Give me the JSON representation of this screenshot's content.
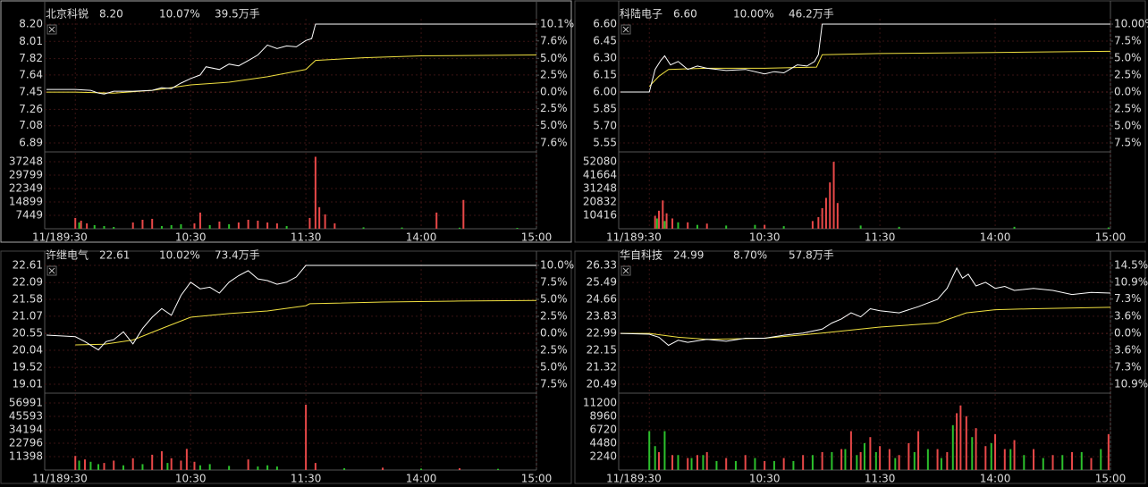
{
  "chart_data": [
    {
      "type": "intraday",
      "name": "北京科锐",
      "price": "8.20",
      "change": "10.07%",
      "volume": "39.5万手",
      "date": "11/18",
      "xlim": [
        -15,
        240
      ],
      "xticks": [
        {
          "value": 0,
          "label": "9:30"
        },
        {
          "value": 60,
          "label": "10:30"
        },
        {
          "value": 120,
          "label": "11:30"
        },
        {
          "value": 180,
          "label": "14:00"
        },
        {
          "value": 240,
          "label": "15:00"
        }
      ],
      "ylim": [
        6.89,
        8.2
      ],
      "yticks": [
        {
          "value": 8.2,
          "label": "8.20"
        },
        8.01,
        7.82,
        7.64,
        7.45,
        7.26,
        7.08,
        6.89
      ],
      "y2lim": [
        -7.6,
        10.1
      ],
      "y2ticks": [
        {
          "value": 10.1,
          "label": "10.1%"
        },
        {
          "value": 7.6,
          "label": "7.6%"
        },
        {
          "value": 5.0,
          "label": "5.0%"
        },
        {
          "value": 2.5,
          "label": "2.5%"
        },
        {
          "value": 0,
          "label": "0.0%"
        },
        {
          "value": -2.5,
          "label": "2.5%"
        },
        {
          "value": -5.0,
          "label": "5.0%"
        },
        {
          "value": -7.6,
          "label": "7.6%"
        }
      ],
      "price_line": {
        "color": "#ffffff",
        "x": [
          -15,
          0,
          8,
          12,
          15,
          20,
          30,
          40,
          45,
          50,
          55,
          60,
          65,
          68,
          75,
          80,
          85,
          91,
          95,
          100,
          105,
          110,
          115,
          120,
          123,
          125,
          240
        ],
        "values": [
          7.48,
          7.48,
          7.47,
          7.44,
          7.43,
          7.46,
          7.46,
          7.47,
          7.5,
          7.49,
          7.55,
          7.6,
          7.64,
          7.73,
          7.7,
          7.76,
          7.74,
          7.81,
          7.86,
          7.97,
          7.93,
          7.96,
          7.95,
          8.02,
          8.04,
          8.2,
          8.2
        ]
      },
      "avg_line": {
        "color": "#f0e040",
        "x": [
          -15,
          0,
          20,
          40,
          60,
          80,
          100,
          115,
          120,
          125,
          150,
          180,
          240
        ],
        "values": [
          7.45,
          7.45,
          7.44,
          7.47,
          7.53,
          7.56,
          7.62,
          7.68,
          7.7,
          7.8,
          7.83,
          7.85,
          7.86
        ]
      },
      "volume_ylim": [
        0,
        42200
      ],
      "volume_yticks": [
        37248,
        29799,
        22349,
        14899,
        7449
      ],
      "volume_series": [
        {
          "color": "#e84848",
          "x": [
            0,
            3,
            6,
            30,
            35,
            40,
            62,
            65,
            75,
            85,
            90,
            95,
            100,
            105,
            122,
            125,
            127,
            130,
            135,
            188,
            202
          ],
          "values": [
            6000,
            4500,
            3000,
            3500,
            5000,
            5500,
            3000,
            9000,
            4000,
            3500,
            5000,
            4500,
            3500,
            3000,
            6000,
            40000,
            12000,
            8000,
            3000,
            9000,
            16000
          ]
        },
        {
          "color": "#2cc02c",
          "x": [
            2,
            10,
            15,
            20,
            45,
            50,
            55,
            70,
            80,
            110,
            150,
            170,
            200,
            230
          ],
          "values": [
            3500,
            2000,
            1500,
            1000,
            1500,
            2000,
            2500,
            2000,
            2500,
            1500,
            800,
            700,
            600,
            500
          ]
        }
      ]
    },
    {
      "type": "intraday",
      "name": "科陆电子",
      "price": "6.60",
      "change": "10.00%",
      "volume": "46.2万手",
      "date": "11/18",
      "xlim": [
        -15,
        240
      ],
      "xticks": [
        {
          "value": 0,
          "label": "9:30"
        },
        {
          "value": 60,
          "label": "10:30"
        },
        {
          "value": 120,
          "label": "11:30"
        },
        {
          "value": 180,
          "label": "14:00"
        },
        {
          "value": 240,
          "label": "15:00"
        }
      ],
      "ylim": [
        5.55,
        6.6
      ],
      "yticks": [
        {
          "value": 6.6,
          "label": "6.60"
        },
        6.45,
        {
          "value": 6.3,
          "label": "6.30"
        },
        6.15,
        {
          "value": 6.0,
          "label": "6.00"
        },
        5.85,
        {
          "value": 5.7,
          "label": "5.70"
        },
        5.55
      ],
      "y2lim": [
        -7.5,
        10.0
      ],
      "y2ticks": [
        {
          "value": 10.0,
          "label": "10.00%"
        },
        {
          "value": 7.5,
          "label": "7.5%"
        },
        {
          "value": 5.0,
          "label": "5.0%"
        },
        {
          "value": 2.5,
          "label": "2.5%"
        },
        {
          "value": 0,
          "label": "0.0%"
        },
        {
          "value": -2.5,
          "label": "2.5%"
        },
        {
          "value": -5.0,
          "label": "5.0%"
        },
        {
          "value": -7.5,
          "label": "7.5%"
        }
      ],
      "price_line": {
        "color": "#ffffff",
        "x": [
          -15,
          0,
          3,
          6,
          8,
          11,
          15,
          20,
          25,
          30,
          40,
          50,
          60,
          65,
          70,
          77,
          82,
          86,
          88,
          90,
          240
        ],
        "values": [
          6.0,
          6.0,
          6.2,
          6.28,
          6.32,
          6.24,
          6.27,
          6.2,
          6.23,
          6.21,
          6.19,
          6.2,
          6.16,
          6.18,
          6.17,
          6.24,
          6.23,
          6.27,
          6.33,
          6.6,
          6.6
        ]
      },
      "avg_line": {
        "color": "#f0e040",
        "x": [
          0,
          5,
          10,
          30,
          60,
          87,
          90,
          120,
          180,
          240
        ],
        "values": [
          6.05,
          6.14,
          6.2,
          6.21,
          6.21,
          6.22,
          6.33,
          6.34,
          6.35,
          6.36
        ]
      },
      "volume_ylim": [
        0,
        59000
      ],
      "volume_yticks": [
        52080,
        41664,
        31248,
        20832,
        10416
      ],
      "volume_series": [
        {
          "color": "#e84848",
          "x": [
            3,
            5,
            7,
            9,
            12,
            20,
            30,
            60,
            85,
            88,
            90,
            92,
            94,
            96,
            98
          ],
          "values": [
            10000,
            14000,
            22000,
            12000,
            8000,
            5000,
            4000,
            3000,
            6000,
            9000,
            16000,
            24000,
            36000,
            52000,
            20000
          ]
        },
        {
          "color": "#2cc02c",
          "x": [
            4,
            8,
            15,
            25,
            40,
            55,
            70,
            110,
            130,
            190,
            239
          ],
          "values": [
            8000,
            6000,
            5000,
            3000,
            2500,
            3000,
            2000,
            2500,
            1500,
            1500,
            1000
          ]
        }
      ]
    },
    {
      "type": "intraday",
      "name": "许继电气",
      "price": "22.61",
      "change": "10.02%",
      "volume": "73.4万手",
      "date": "11/18",
      "xlim": [
        -15,
        240
      ],
      "xticks": [
        {
          "value": 0,
          "label": "9:30"
        },
        {
          "value": 60,
          "label": "10:30"
        },
        {
          "value": 120,
          "label": "11:30"
        },
        {
          "value": 180,
          "label": "14:00"
        },
        {
          "value": 240,
          "label": "15:00"
        }
      ],
      "ylim": [
        19.01,
        22.61
      ],
      "yticks": [
        22.61,
        22.09,
        21.58,
        21.07,
        20.55,
        20.04,
        19.52,
        19.01
      ],
      "y2lim": [
        -7.5,
        10.0
      ],
      "y2ticks": [
        {
          "value": 10.0,
          "label": "10.0%"
        },
        {
          "value": 7.5,
          "label": "7.5%"
        },
        {
          "value": 5.0,
          "label": "5.0%"
        },
        {
          "value": 2.5,
          "label": "2.5%"
        },
        {
          "value": 0,
          "label": "0.0%"
        },
        {
          "value": -2.5,
          "label": "2.5%"
        },
        {
          "value": -5.0,
          "label": "5.0%"
        },
        {
          "value": -7.5,
          "label": "7.5%"
        }
      ],
      "price_line": {
        "color": "#ffffff",
        "x": [
          -15,
          0,
          5,
          12,
          16,
          20,
          25,
          30,
          35,
          40,
          45,
          50,
          55,
          60,
          65,
          70,
          75,
          80,
          85,
          90,
          95,
          100,
          105,
          110,
          115,
          120,
          240
        ],
        "values": [
          20.5,
          20.45,
          20.3,
          20.05,
          20.3,
          20.36,
          20.6,
          20.23,
          20.7,
          21.04,
          21.3,
          21.1,
          21.7,
          22.1,
          21.9,
          21.95,
          21.77,
          22.1,
          22.3,
          22.45,
          22.2,
          22.15,
          22.04,
          22.1,
          22.26,
          22.61,
          22.61
        ]
      },
      "avg_line": {
        "color": "#f0e040",
        "x": [
          0,
          15,
          30,
          45,
          60,
          80,
          100,
          120,
          122,
          160,
          200,
          240
        ],
        "values": [
          20.2,
          20.22,
          20.35,
          20.7,
          21.04,
          21.15,
          21.23,
          21.39,
          21.45,
          21.5,
          21.53,
          21.55
        ]
      },
      "volume_ylim": [
        0,
        64600
      ],
      "volume_yticks": [
        56991,
        45593,
        34194,
        22796,
        11398
      ],
      "volume_series": [
        {
          "color": "#e84848",
          "x": [
            0,
            5,
            15,
            20,
            30,
            40,
            45,
            50,
            55,
            58,
            62,
            90,
            120,
            125,
            160,
            200
          ],
          "values": [
            12000,
            9000,
            6000,
            8000,
            10000,
            13000,
            16000,
            10000,
            8000,
            18000,
            7000,
            9000,
            55500,
            6000,
            2000,
            1500
          ]
        },
        {
          "color": "#2cc02c",
          "x": [
            2,
            8,
            12,
            25,
            35,
            48,
            65,
            70,
            80,
            95,
            100,
            105,
            140,
            180,
            220
          ],
          "values": [
            8000,
            7000,
            5000,
            4000,
            5000,
            6000,
            4000,
            5000,
            3500,
            3000,
            4000,
            3000,
            1500,
            1200,
            1000
          ]
        }
      ]
    },
    {
      "type": "intraday",
      "name": "华自科技",
      "price": "24.99",
      "change": "8.70%",
      "volume": "57.8万手",
      "date": "11/18",
      "xlim": [
        -15,
        240
      ],
      "xticks": [
        {
          "value": 0,
          "label": "9:30"
        },
        {
          "value": 60,
          "label": "10:30"
        },
        {
          "value": 120,
          "label": "11:30"
        },
        {
          "value": 180,
          "label": "14:00"
        },
        {
          "value": 240,
          "label": "15:00"
        }
      ],
      "ylim": [
        20.49,
        26.33
      ],
      "yticks": [
        26.33,
        25.49,
        24.66,
        23.83,
        22.99,
        22.15,
        21.32,
        20.49
      ],
      "y2lim": [
        -10.9,
        14.5
      ],
      "y2ticks": [
        {
          "value": 14.5,
          "label": "14.5%"
        },
        {
          "value": 10.9,
          "label": "10.9%"
        },
        {
          "value": 7.3,
          "label": "7.3%"
        },
        {
          "value": 3.6,
          "label": "3.6%"
        },
        {
          "value": 0,
          "label": "0.0%"
        },
        {
          "value": -3.6,
          "label": "3.6%"
        },
        {
          "value": -7.3,
          "label": "7.3%"
        },
        {
          "value": -10.9,
          "label": "10.9%"
        }
      ],
      "price_line": {
        "color": "#ffffff",
        "x": [
          -15,
          0,
          5,
          10,
          15,
          20,
          30,
          40,
          50,
          60,
          70,
          80,
          90,
          95,
          100,
          105,
          110,
          115,
          120,
          130,
          140,
          150,
          155,
          160,
          163,
          166,
          170,
          175,
          180,
          185,
          190,
          200,
          210,
          220,
          230,
          240
        ],
        "values": [
          22.99,
          22.95,
          22.8,
          22.4,
          22.65,
          22.55,
          22.7,
          22.6,
          22.75,
          22.75,
          22.9,
          23.0,
          23.2,
          23.5,
          23.7,
          24.0,
          23.8,
          24.2,
          24.1,
          24.0,
          24.3,
          24.66,
          25.2,
          26.2,
          25.7,
          25.9,
          25.32,
          25.5,
          25.2,
          25.3,
          25.1,
          25.2,
          25.1,
          24.9,
          25.0,
          24.97
        ]
      },
      "avg_line": {
        "color": "#f0e040",
        "x": [
          -15,
          0,
          15,
          30,
          60,
          90,
          120,
          150,
          165,
          180,
          200,
          240
        ],
        "values": [
          22.99,
          22.99,
          22.8,
          22.7,
          22.75,
          23.0,
          23.3,
          23.5,
          24.0,
          24.15,
          24.2,
          24.27
        ]
      },
      "volume_ylim": [
        0,
        12700
      ],
      "volume_yticks": [
        11200,
        8960,
        6720,
        4480,
        2240
      ],
      "volume_series": [
        {
          "color": "#e84848",
          "x": [
            5,
            12,
            20,
            25,
            30,
            40,
            50,
            60,
            70,
            80,
            90,
            100,
            105,
            110,
            115,
            120,
            125,
            130,
            135,
            140,
            150,
            155,
            160,
            162,
            165,
            170,
            175,
            180,
            185,
            190,
            200,
            210,
            220,
            230,
            239
          ],
          "values": [
            3000,
            2500,
            2000,
            2500,
            3000,
            2000,
            2500,
            1500,
            2000,
            2500,
            3000,
            3500,
            6500,
            3000,
            5500,
            4000,
            3500,
            2500,
            4500,
            6500,
            3500,
            3000,
            9500,
            10800,
            9000,
            7000,
            4000,
            6000,
            3500,
            5000,
            3500,
            2500,
            3000,
            2000,
            6000
          ]
        },
        {
          "color": "#2cc02c",
          "x": [
            0,
            3,
            8,
            15,
            22,
            28,
            35,
            45,
            55,
            65,
            75,
            85,
            95,
            102,
            108,
            112,
            118,
            128,
            138,
            145,
            152,
            158,
            168,
            178,
            188,
            195,
            205,
            215,
            225,
            235
          ],
          "values": [
            6500,
            4000,
            6500,
            2500,
            2000,
            2500,
            1500,
            1500,
            2000,
            1500,
            1500,
            2500,
            3000,
            3500,
            2500,
            4500,
            3000,
            2000,
            3000,
            3500,
            2000,
            7500,
            5500,
            4500,
            3500,
            2500,
            2000,
            2500,
            3000,
            3500
          ]
        }
      ]
    }
  ]
}
